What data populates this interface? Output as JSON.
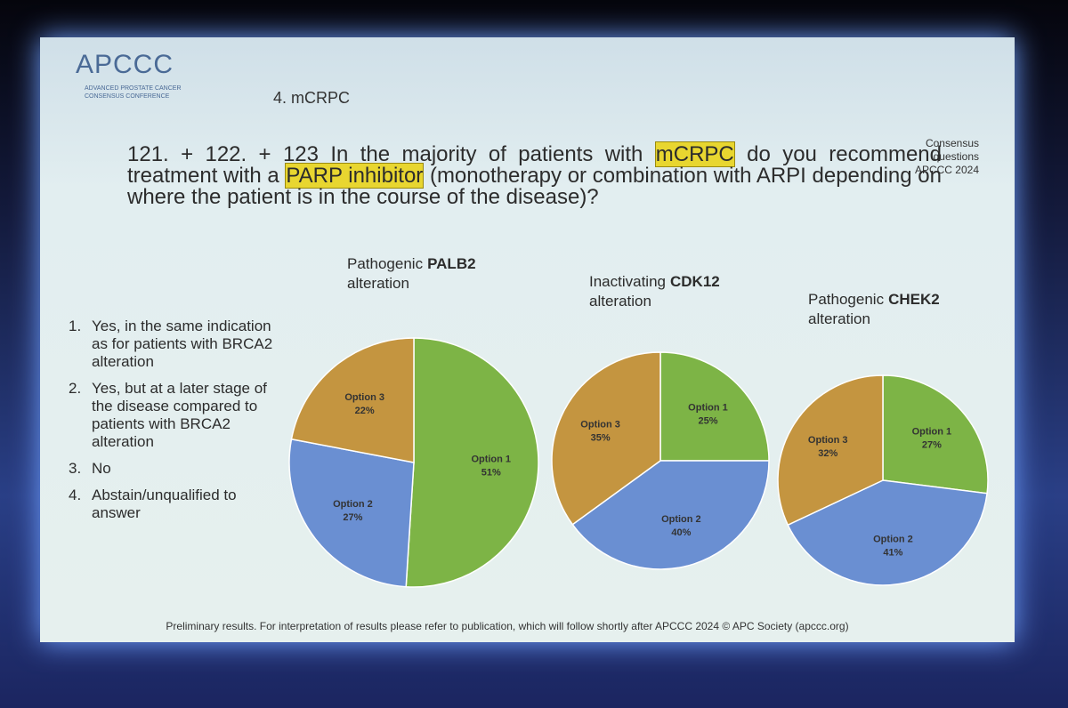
{
  "header": {
    "logo": "APCCC",
    "logo_line1": "ADVANCED PROSTATE CANCER",
    "logo_line2": "CONSENSUS CONFERENCE",
    "section": "4. mCRPC",
    "corner": [
      "Consensus",
      "questions",
      "APCCC 2024"
    ]
  },
  "question": [
    "121. + 122. + 123 In the majority of patients with ",
    "mCRPC",
    " do you recommend treatment with a ",
    "PARP inhibitor",
    " (monotherapy or combination with ARPI depending on where the patient is in the course of the disease)?"
  ],
  "options": [
    {
      "number": "1.",
      "text": "Yes, in the same indication as for patients with BRCA2 alteration"
    },
    {
      "number": "2.",
      "text": "Yes, but at a later stage of the disease compared to patients with BRCA2 alteration"
    },
    {
      "number": "3.",
      "text": "No"
    },
    {
      "number": "4.",
      "text": "Abstain/unqualified to answer"
    }
  ],
  "footer": "Preliminary results. For interpretation of results please refer to publication, which will follow shortly after APCCC 2024 © APC Society (apccc.org)",
  "chart_data": [
    {
      "type": "pie",
      "title": {
        "lead": "Pathogenic",
        "gene": "PALB2",
        "tail": "alteration"
      },
      "categories": [
        "Option 1",
        "Option 2",
        "Option 3"
      ],
      "values": [
        51,
        27,
        22
      ],
      "value_labels": [
        "51%",
        "27%",
        "22%"
      ],
      "colors": [
        "#7db446",
        "#6a8fd2",
        "#c49540"
      ]
    },
    {
      "type": "pie",
      "title": {
        "lead": "Inactivating",
        "gene": "CDK12",
        "tail": "alteration"
      },
      "categories": [
        "Option 1",
        "Option 2",
        "Option 3"
      ],
      "values": [
        25,
        40,
        35
      ],
      "value_labels": [
        "25%",
        "40%",
        "35%"
      ],
      "colors": [
        "#7db446",
        "#6a8fd2",
        "#c49540"
      ]
    },
    {
      "type": "pie",
      "title": {
        "lead": "Pathogenic",
        "gene": "CHEK2",
        "tail": "alteration"
      },
      "categories": [
        "Option 1",
        "Option 2",
        "Option 3"
      ],
      "values": [
        27,
        41,
        32
      ],
      "value_labels": [
        "27%",
        "41%",
        "32%"
      ],
      "colors": [
        "#7db446",
        "#6a8fd2",
        "#c49540"
      ]
    }
  ]
}
